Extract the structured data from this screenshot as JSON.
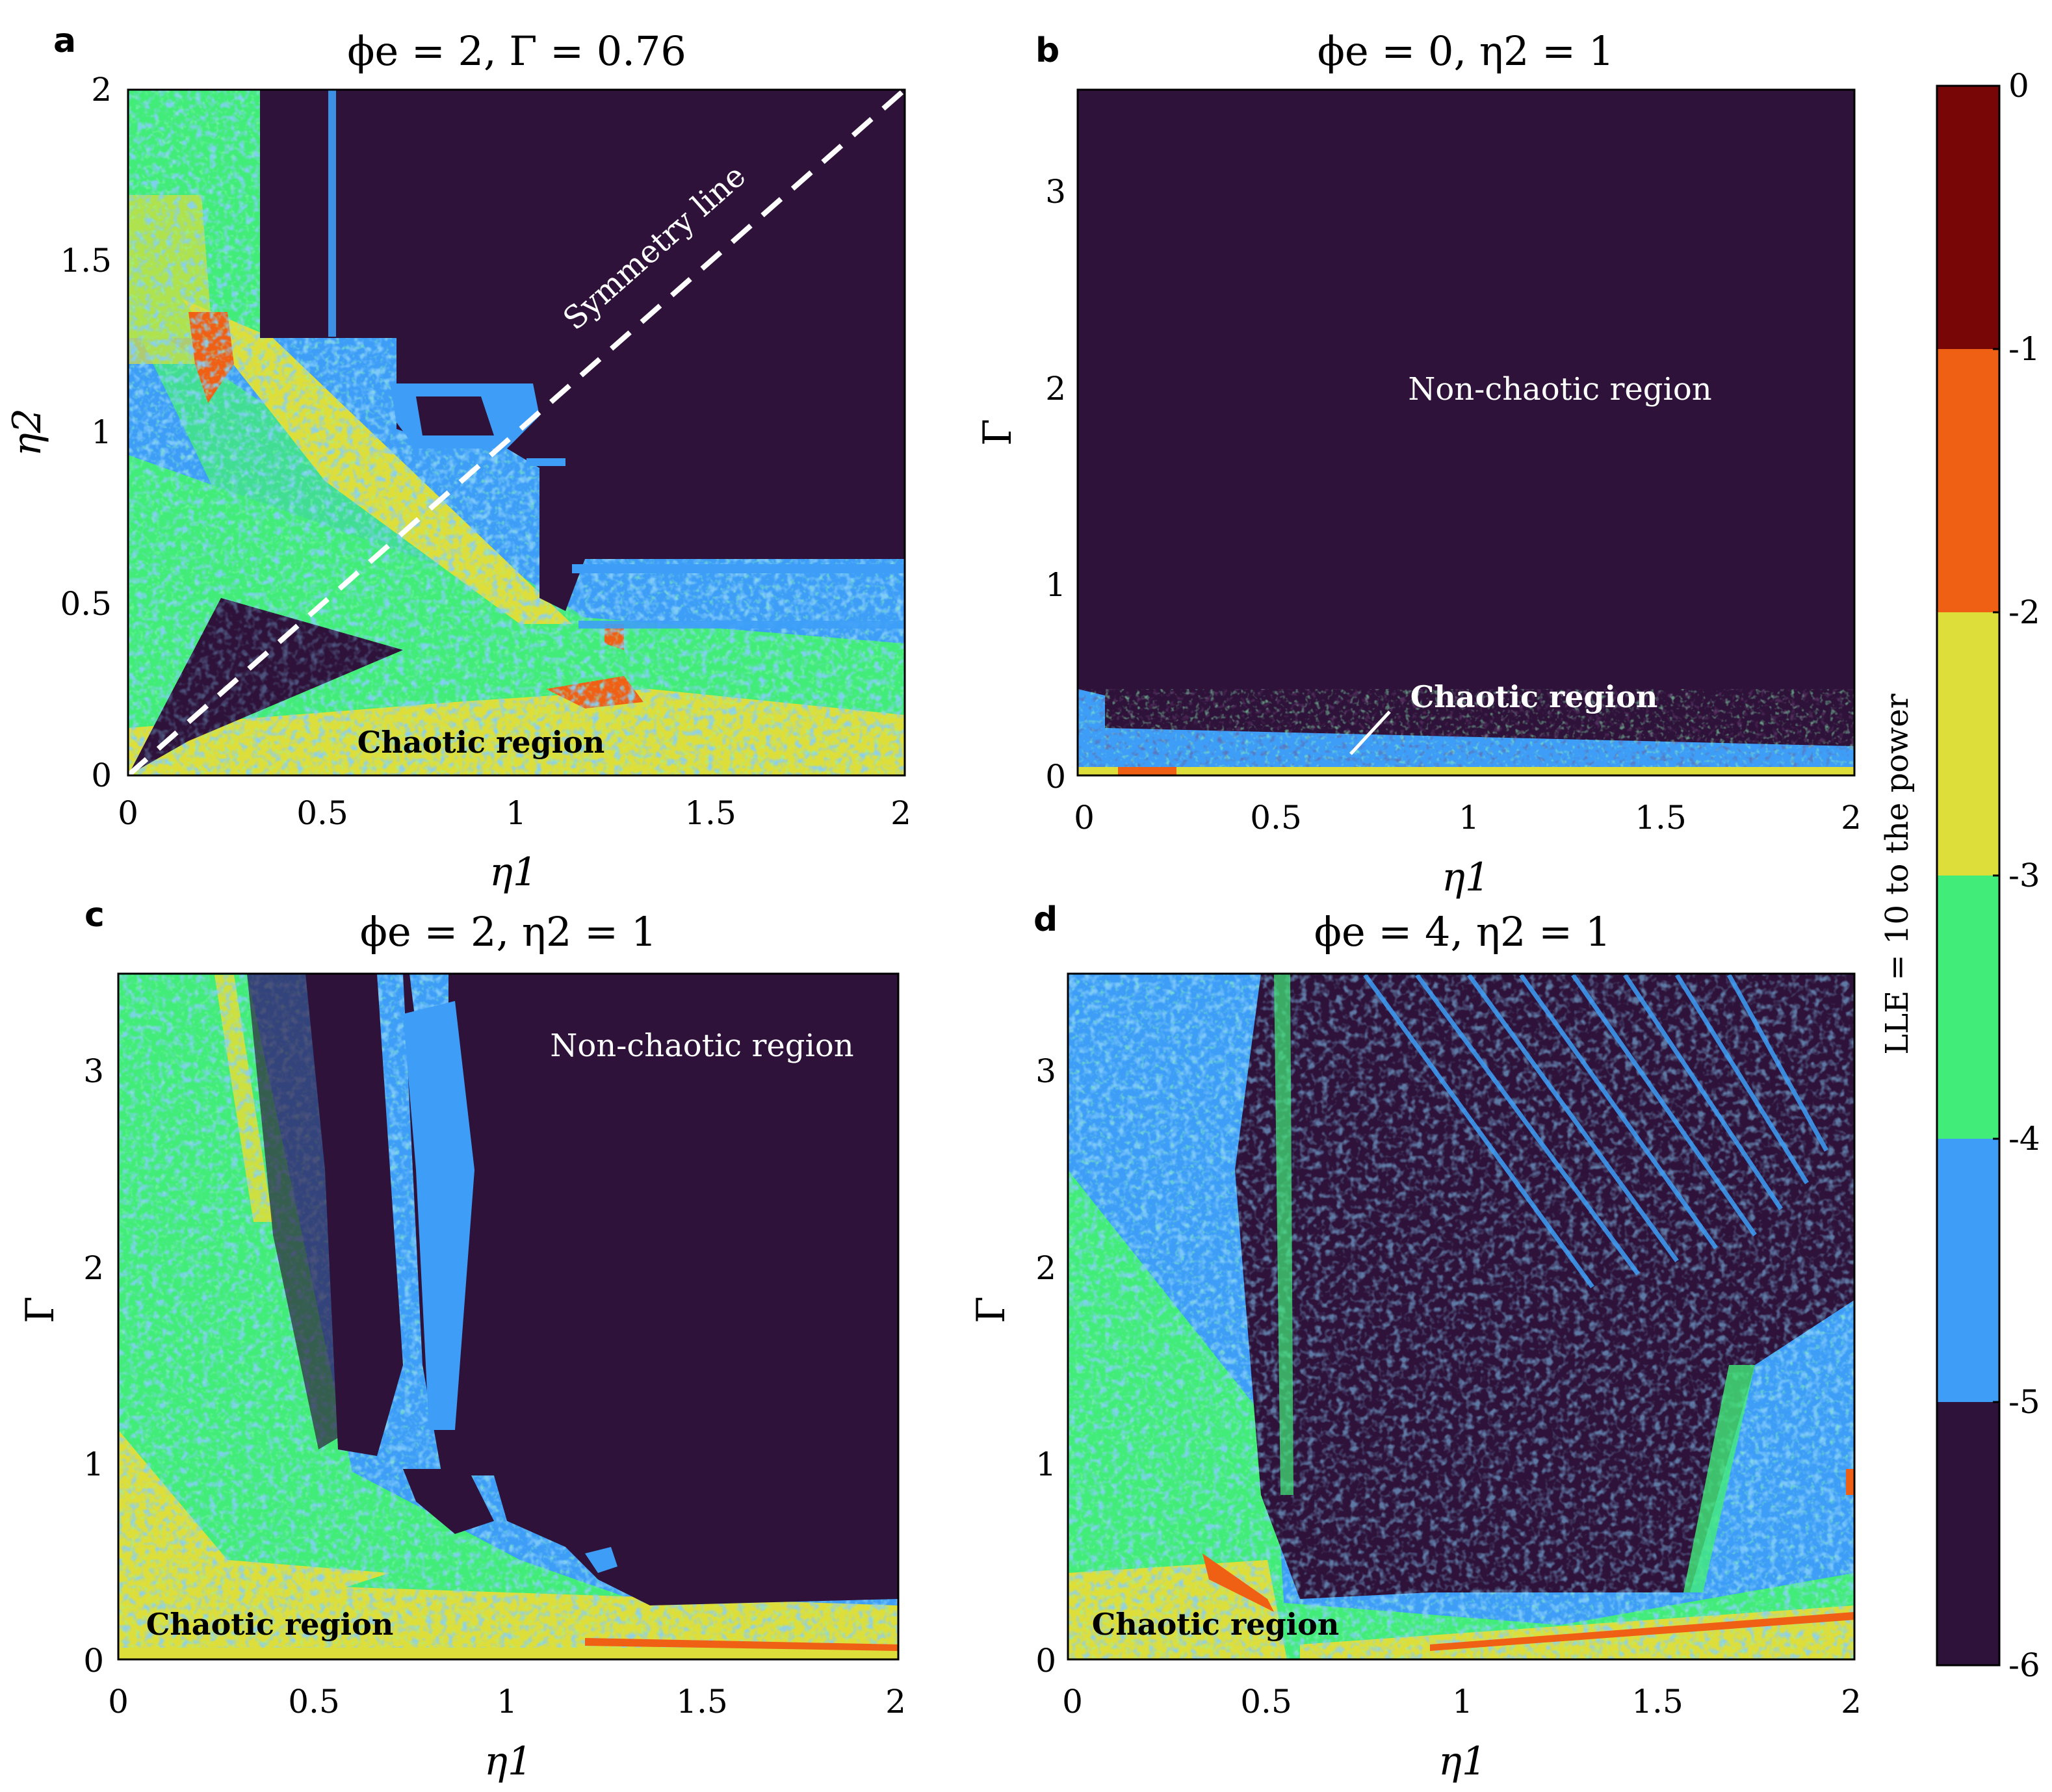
{
  "colors": {
    "dark": "#2e1239",
    "blue": "#3e9ef7",
    "green": "#42ec79",
    "yellow": "#dede3a",
    "orange": "#f06014",
    "red": "#790607"
  },
  "colorbar": {
    "label": "LLE = 10 to the power",
    "ticks": [
      "0",
      "-1",
      "-2",
      "-3",
      "-4",
      "-5",
      "-6"
    ],
    "bands": [
      {
        "range": "-1 to 0",
        "color": "#790607"
      },
      {
        "range": "-2 to -1",
        "color": "#f06014"
      },
      {
        "range": "-3 to -2",
        "color": "#dede3a"
      },
      {
        "range": "-4 to -3",
        "color": "#42ec79"
      },
      {
        "range": "-5 to -4",
        "color": "#3e9ef7"
      },
      {
        "range": "-6 to -5",
        "color": "#2e1239"
      }
    ]
  },
  "chart_data": [
    {
      "panel": "a",
      "type": "heatmap",
      "title": "ϕe = 2, Γ = 0.76",
      "xlabel": "η1",
      "ylabel": "η2",
      "xlim": [
        0,
        2
      ],
      "ylim": [
        0,
        2
      ],
      "xticks": [
        "0",
        "0.5",
        "1",
        "1.5",
        "2"
      ],
      "yticks": [
        "0",
        "0.5",
        "1",
        "1.5",
        "2"
      ],
      "annotations": [
        "Symmetry line",
        "Chaotic region"
      ],
      "symmetry_line": {
        "x": [
          0,
          2
        ],
        "y": [
          0,
          2
        ]
      }
    },
    {
      "panel": "b",
      "type": "heatmap",
      "title": "ϕe = 0, η2 = 1",
      "xlabel": "η1",
      "ylabel": "Γ",
      "xlim": [
        0,
        2
      ],
      "ylim": [
        0,
        3.5
      ],
      "xticks": [
        "0",
        "0.5",
        "1",
        "1.5",
        "2"
      ],
      "yticks": [
        "0",
        "1",
        "2",
        "3"
      ],
      "annotations": [
        "Non-chaotic region",
        "Chaotic region"
      ]
    },
    {
      "panel": "c",
      "type": "heatmap",
      "title": "ϕe = 2, η2 = 1",
      "xlabel": "η1",
      "ylabel": "Γ",
      "xlim": [
        0,
        2
      ],
      "ylim": [
        0,
        3.5
      ],
      "xticks": [
        "0",
        "0.5",
        "1",
        "1.5",
        "2"
      ],
      "yticks": [
        "0",
        "1",
        "2",
        "3"
      ],
      "annotations": [
        "Non-chaotic region",
        "Chaotic region"
      ]
    },
    {
      "panel": "d",
      "type": "heatmap",
      "title": "ϕe = 4, η2 = 1",
      "xlabel": "η1",
      "ylabel": "Γ",
      "xlim": [
        0,
        2
      ],
      "ylim": [
        0,
        3.5
      ],
      "xticks": [
        "0",
        "0.5",
        "1",
        "1.5",
        "2"
      ],
      "yticks": [
        "0",
        "1",
        "2",
        "3"
      ],
      "annotations": [
        "Chaotic region"
      ]
    }
  ]
}
